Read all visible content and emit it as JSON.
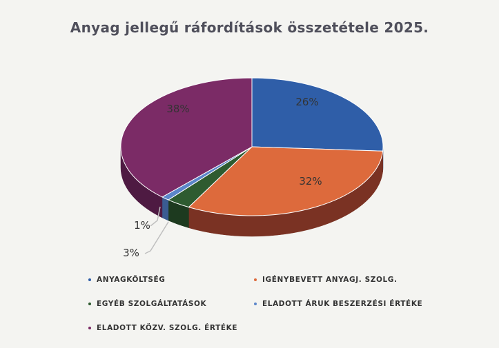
{
  "chart_data": {
    "type": "pie",
    "title": "Anyag jellegű ráfordítások összetétele  2025.",
    "series": [
      {
        "name": "ANYAGKÖLTSÉG",
        "value": 26,
        "label": "26%",
        "color": "#2f5ea8",
        "side": "#1f3f74"
      },
      {
        "name": "IGÉNYBEVETT ANYAGJ. SZOLG.",
        "value": 32,
        "label": "32%",
        "color": "#dd6a3c",
        "side": "#7a3223"
      },
      {
        "name": "EGYÉB SZOLGÁLTATÁSOK",
        "value": 3,
        "label": "3%",
        "color": "#2e5b30",
        "side": "#1d3a1f"
      },
      {
        "name": "ELADOTT ÁRUK BESZERZÉSI ÉRTÉKE",
        "value": 1,
        "label": "1%",
        "color": "#5c86c9",
        "side": "#3a5b91"
      },
      {
        "name": "ELADOTT KÖZV. SZOLG. ÉRTÉKE",
        "value": 38,
        "label": "38%",
        "color": "#7b2b66",
        "side": "#4e1a42"
      }
    ],
    "legend_position": "bottom"
  }
}
